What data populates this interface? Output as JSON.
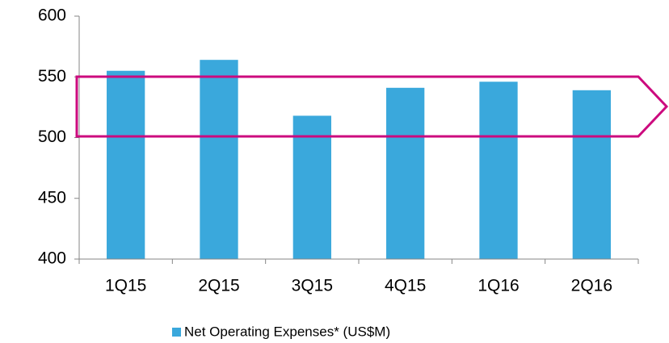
{
  "chart_data": {
    "type": "bar",
    "categories": [
      "1Q15",
      "2Q15",
      "3Q15",
      "4Q15",
      "1Q16",
      "2Q16"
    ],
    "series": [
      {
        "name": "Net Operating Expenses* (US$M)",
        "color": "#3aa8dc",
        "values": [
          555,
          564,
          518,
          541,
          546,
          539
        ]
      }
    ],
    "ylim": [
      400,
      600
    ],
    "yticks": [
      400,
      450,
      500,
      550,
      600
    ],
    "grid": false,
    "legend": "bottom"
  }
}
